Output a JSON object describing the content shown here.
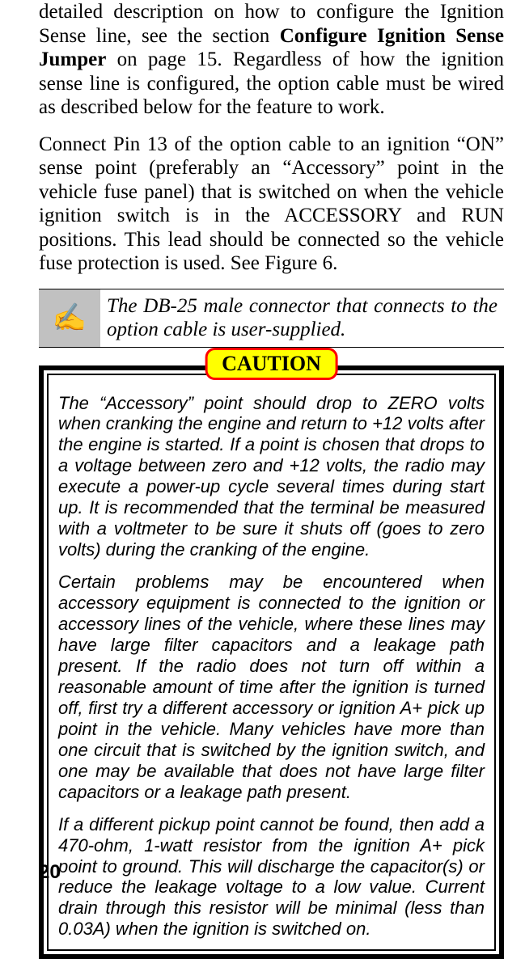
{
  "para1_pre": "detailed description on how to configure the Ignition Sense line, see the section ",
  "para1_bold": "Configure Ignition Sense Jumper",
  "para1_post": " on page 15. Regardless of how the ignition sense line is configured, the option cable must be wired as described below for the feature to work.",
  "para2": "Connect Pin 13 of the option cable to an ignition “ON” sense point (preferably an “Accessory” point in the vehicle fuse panel) that is switched on when the vehicle ignition switch is in the ACCESSORY and RUN positions.  This lead should be connected so the vehicle fuse protection is used.  See Figure 6.",
  "note_icon": "✍",
  "note_text": "The DB-25 male connector that connects to the option cable is user-supplied.",
  "caution_label": "CAUTION",
  "caution_p1": "The “Accessory” point should drop to ZERO volts when cranking the engine and return to +12 volts after the engine is started. If a point is chosen that drops to a voltage between zero and +12 volts, the radio may execute a power-up cycle several times during start up.  It is recommended that the terminal be measured with a voltmeter to be sure it shuts off (goes to zero volts) during the cranking of the engine.",
  "caution_p2": "Certain problems may be encountered when accessory equipment is connected to the ignition or accessory lines of the vehicle, where these lines may have large filter capacitors and a leakage path present.  If the radio does not turn off within a reasonable amount of time after the ignition is turned off, first try a different accessory or ignition A+ pick up point in the vehicle. Many vehicles have more than one circuit that is switched by the ignition switch, and one may be available that does not have large filter capacitors or a leakage path present.",
  "caution_p3": "If a different pickup point cannot be found, then add a 470-ohm, 1-watt resistor from the ignition A+ pick point to ground. This will discharge the capacitor(s) or reduce the leakage voltage to a low value.  Current drain through this resistor will be minimal (less than 0.03A) when the ignition is switched on.",
  "page_number": "20",
  "colors": {
    "caution_bg": "#ffff00",
    "caution_border": "#ff0000",
    "note_icon_bg": "#c1c1c1",
    "text": "#000000",
    "page_bg": "#ffffff"
  }
}
